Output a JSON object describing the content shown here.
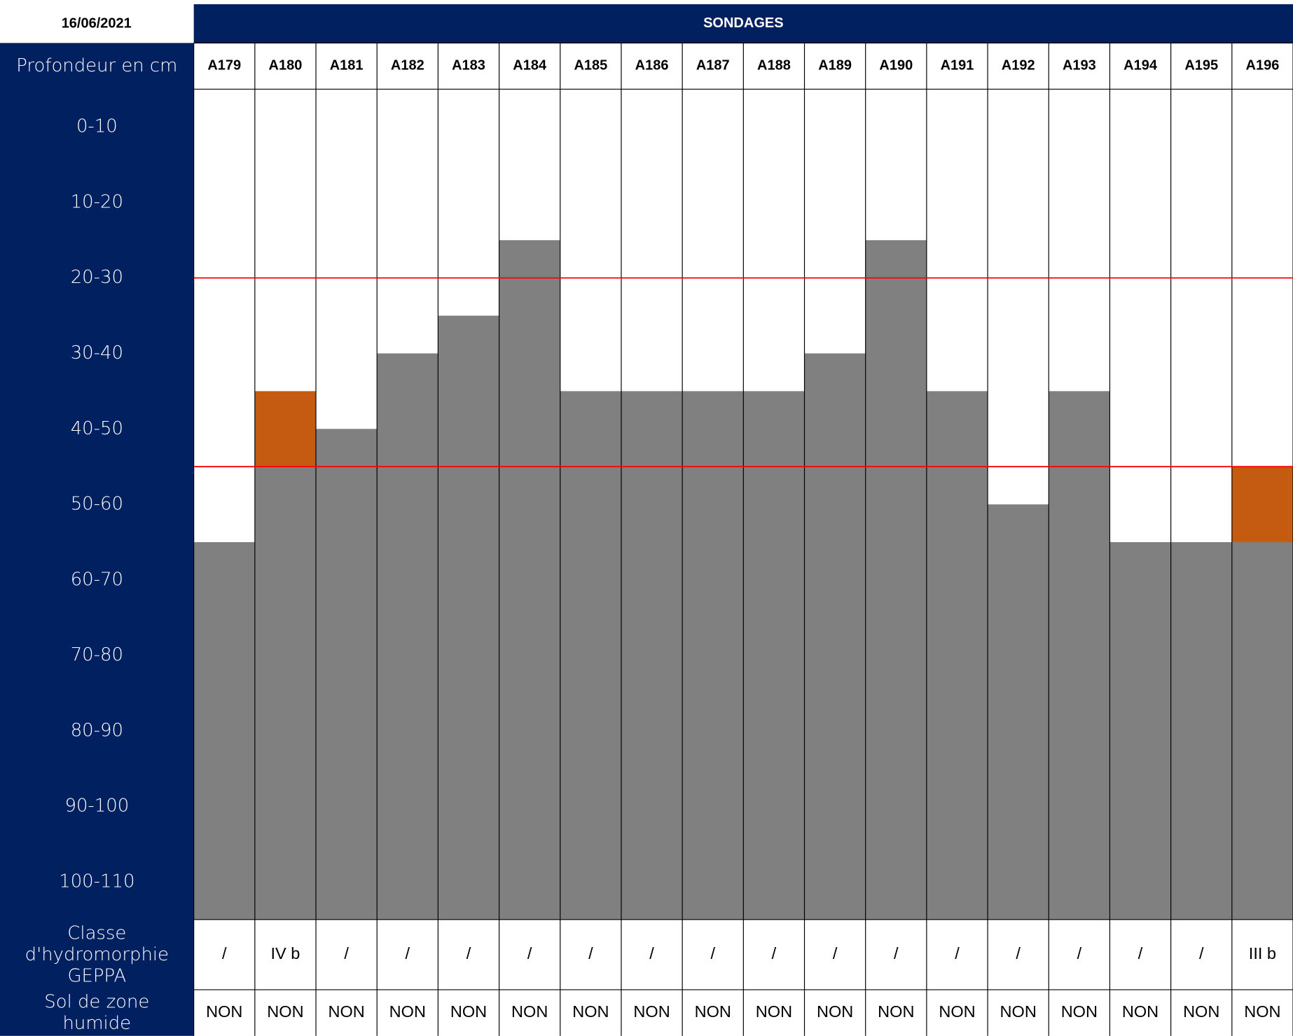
{
  "date": "16/06/2021",
  "header": "SONDAGES",
  "row_label": "Profondeur en cm",
  "depth_rows": [
    "0-10",
    "10-20",
    "20-30",
    "30-40",
    "40-50",
    "50-60",
    "60-70",
    "70-80",
    "80-90",
    "90-100",
    "100-110"
  ],
  "depth_lim": [
    0,
    110
  ],
  "limits": [
    25,
    50
  ],
  "colors": {
    "header": "#002060",
    "soil": "#808080",
    "trace": "#c55a11",
    "limit": "#ff0000"
  },
  "classe_label": [
    "Classe",
    "d'hydromorphie",
    "GEPPA"
  ],
  "zone_label": [
    "Sol de zone",
    "humide"
  ],
  "columns": [
    {
      "name": "A179",
      "gray_from": 60,
      "classe": "/",
      "zone": "NON"
    },
    {
      "name": "A180",
      "gray_from": 50,
      "orange": [
        40,
        50
      ],
      "classe": "IV b",
      "zone": "NON"
    },
    {
      "name": "A181",
      "gray_from": 45,
      "classe": "/",
      "zone": "NON"
    },
    {
      "name": "A182",
      "gray_from": 35,
      "classe": "/",
      "zone": "NON"
    },
    {
      "name": "A183",
      "gray_from": 30,
      "classe": "/",
      "zone": "NON"
    },
    {
      "name": "A184",
      "gray_from": 20,
      "classe": "/",
      "zone": "NON"
    },
    {
      "name": "A185",
      "gray_from": 40,
      "classe": "/",
      "zone": "NON"
    },
    {
      "name": "A186",
      "gray_from": 40,
      "classe": "/",
      "zone": "NON"
    },
    {
      "name": "A187",
      "gray_from": 40,
      "classe": "/",
      "zone": "NON"
    },
    {
      "name": "A188",
      "gray_from": 40,
      "classe": "/",
      "zone": "NON"
    },
    {
      "name": "A189",
      "gray_from": 35,
      "classe": "/",
      "zone": "NON"
    },
    {
      "name": "A190",
      "gray_from": 20,
      "classe": "/",
      "zone": "NON"
    },
    {
      "name": "A191",
      "gray_from": 40,
      "classe": "/",
      "zone": "NON"
    },
    {
      "name": "A192",
      "gray_from": 55,
      "classe": "/",
      "zone": "NON"
    },
    {
      "name": "A193",
      "gray_from": 40,
      "classe": "/",
      "zone": "NON"
    },
    {
      "name": "A194",
      "gray_from": 60,
      "classe": "/",
      "zone": "NON"
    },
    {
      "name": "A195",
      "gray_from": 60,
      "classe": "/",
      "zone": "NON"
    },
    {
      "name": "A196",
      "gray_from": 60,
      "orange": [
        50,
        60
      ],
      "classe": "III b",
      "zone": "NON"
    }
  ]
}
